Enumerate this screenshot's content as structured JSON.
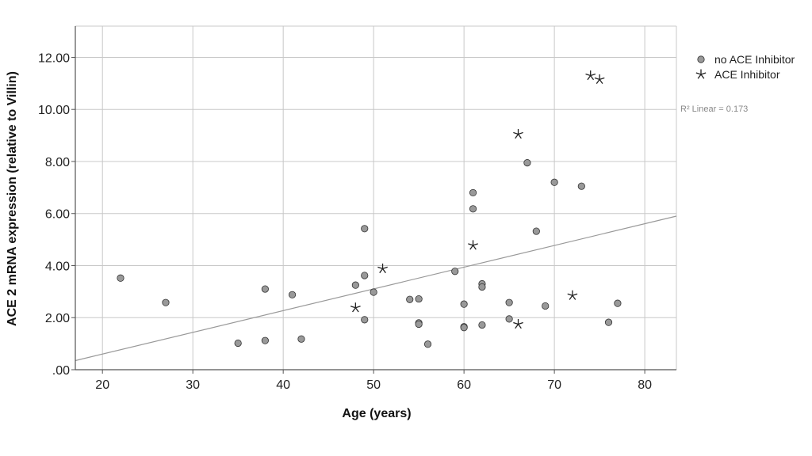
{
  "chart_data": {
    "type": "scatter",
    "title": "",
    "xlabel": "Age (years)",
    "ylabel": "ACE 2 mRNA expression (relative to Villin)",
    "xlim": [
      17,
      83.5
    ],
    "ylim": [
      0,
      13.2
    ],
    "xticks": [
      "20",
      "30",
      "40",
      "50",
      "60",
      "70",
      "80"
    ],
    "yticks": [
      ".00",
      "2.00",
      "4.00",
      "6.00",
      "8.00",
      "10.00",
      "12.00"
    ],
    "grid": true,
    "legend_position": "top-right",
    "series": [
      {
        "name": "no ACE Inhibitor",
        "marker": "circle",
        "color": "#999999",
        "points": [
          [
            22,
            3.52
          ],
          [
            27,
            2.58
          ],
          [
            35,
            1.02
          ],
          [
            38,
            3.1
          ],
          [
            38,
            1.12
          ],
          [
            41,
            2.88
          ],
          [
            42,
            1.18
          ],
          [
            48,
            3.25
          ],
          [
            49,
            5.42
          ],
          [
            49,
            3.62
          ],
          [
            49,
            1.92
          ],
          [
            50,
            2.98
          ],
          [
            54,
            2.7
          ],
          [
            55,
            2.72
          ],
          [
            55,
            1.8
          ],
          [
            55,
            1.75
          ],
          [
            56,
            0.98
          ],
          [
            59,
            3.78
          ],
          [
            60,
            2.52
          ],
          [
            60,
            1.65
          ],
          [
            60,
            1.62
          ],
          [
            61,
            6.8
          ],
          [
            61,
            6.18
          ],
          [
            62,
            3.3
          ],
          [
            62,
            3.18
          ],
          [
            62,
            1.72
          ],
          [
            65,
            2.58
          ],
          [
            65,
            1.95
          ],
          [
            67,
            7.95
          ],
          [
            68,
            5.32
          ],
          [
            69,
            2.45
          ],
          [
            70,
            7.2
          ],
          [
            73,
            7.05
          ],
          [
            76,
            1.82
          ],
          [
            77,
            2.55
          ]
        ]
      },
      {
        "name": "ACE Inhibitor",
        "marker": "star",
        "color": "#222222",
        "points": [
          [
            48,
            2.38
          ],
          [
            51,
            3.88
          ],
          [
            61,
            4.78
          ],
          [
            66,
            9.05
          ],
          [
            66,
            1.75
          ],
          [
            72,
            2.85
          ],
          [
            74,
            11.3
          ],
          [
            75,
            11.15
          ]
        ]
      }
    ],
    "fit_line": {
      "type": "linear",
      "x": [
        17,
        83.5
      ],
      "y": [
        0.35,
        5.9
      ]
    },
    "annotations": [
      "R² Linear = 0.173"
    ]
  }
}
